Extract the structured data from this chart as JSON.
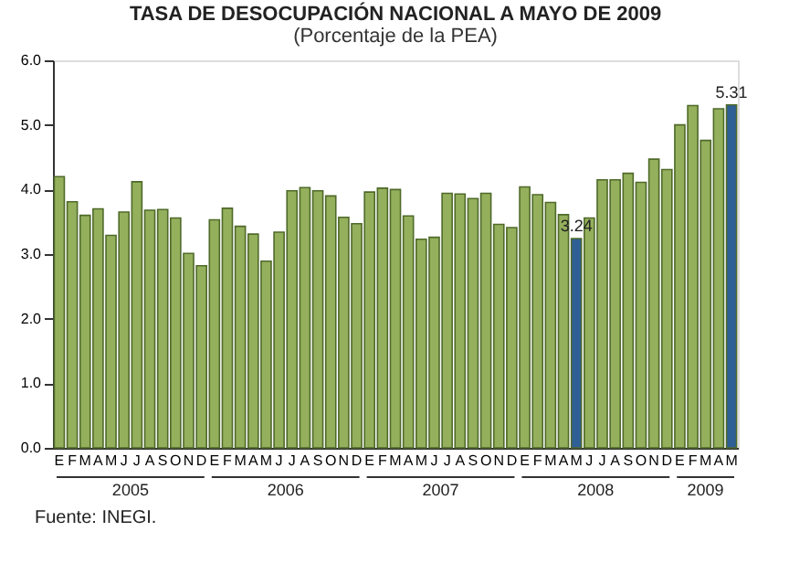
{
  "chart_data": {
    "type": "bar",
    "title": "TASA DE DESOCUPACIÓN NACIONAL A MAYO DE 2009",
    "subtitle": "(Porcentaje de la PEA)",
    "categories": [
      "E",
      "F",
      "M",
      "A",
      "M",
      "J",
      "J",
      "A",
      "S",
      "O",
      "N",
      "D",
      "E",
      "F",
      "M",
      "A",
      "M",
      "J",
      "J",
      "A",
      "S",
      "O",
      "N",
      "D",
      "E",
      "F",
      "M",
      "A",
      "M",
      "J",
      "J",
      "A",
      "S",
      "O",
      "N",
      "D",
      "E",
      "F",
      "M",
      "A",
      "M",
      "J",
      "J",
      "A",
      "S",
      "O",
      "N",
      "D",
      "E",
      "F",
      "M",
      "A",
      "M"
    ],
    "values": [
      4.2,
      3.81,
      3.6,
      3.7,
      3.29,
      3.65,
      4.12,
      3.68,
      3.69,
      3.56,
      3.01,
      2.82,
      3.53,
      3.71,
      3.43,
      3.31,
      2.89,
      3.34,
      3.98,
      4.03,
      3.98,
      3.9,
      3.57,
      3.47,
      3.96,
      4.02,
      4.0,
      3.59,
      3.23,
      3.26,
      3.94,
      3.93,
      3.86,
      3.94,
      3.46,
      3.41,
      4.04,
      3.92,
      3.8,
      3.61,
      3.24,
      3.56,
      4.15,
      4.15,
      4.25,
      4.11,
      4.47,
      4.31,
      5.0,
      5.3,
      4.76,
      5.25,
      5.31
    ],
    "colors": [
      "#94b05c",
      "#94b05c",
      "#94b05c",
      "#94b05c",
      "#94b05c",
      "#94b05c",
      "#94b05c",
      "#94b05c",
      "#94b05c",
      "#94b05c",
      "#94b05c",
      "#94b05c",
      "#94b05c",
      "#94b05c",
      "#94b05c",
      "#94b05c",
      "#94b05c",
      "#94b05c",
      "#94b05c",
      "#94b05c",
      "#94b05c",
      "#94b05c",
      "#94b05c",
      "#94b05c",
      "#94b05c",
      "#94b05c",
      "#94b05c",
      "#94b05c",
      "#94b05c",
      "#94b05c",
      "#94b05c",
      "#94b05c",
      "#94b05c",
      "#94b05c",
      "#94b05c",
      "#94b05c",
      "#94b05c",
      "#94b05c",
      "#94b05c",
      "#94b05c",
      "#2e5f95",
      "#94b05c",
      "#94b05c",
      "#94b05c",
      "#94b05c",
      "#94b05c",
      "#94b05c",
      "#94b05c",
      "#94b05c",
      "#94b05c",
      "#94b05c",
      "#94b05c",
      "#2e5f95"
    ],
    "value_labels": [
      null,
      null,
      null,
      null,
      null,
      null,
      null,
      null,
      null,
      null,
      null,
      null,
      null,
      null,
      null,
      null,
      null,
      null,
      null,
      null,
      null,
      null,
      null,
      null,
      null,
      null,
      null,
      null,
      null,
      null,
      null,
      null,
      null,
      null,
      null,
      null,
      null,
      null,
      null,
      null,
      "3.24",
      null,
      null,
      null,
      null,
      null,
      null,
      null,
      null,
      null,
      null,
      null,
      "5.31"
    ],
    "ylim": [
      0,
      6
    ],
    "yticks": [
      {
        "value": 0,
        "label": "0.0"
      },
      {
        "value": 1,
        "label": "1.0"
      },
      {
        "value": 2,
        "label": "2.0"
      },
      {
        "value": 3,
        "label": "3.0"
      },
      {
        "value": 4,
        "label": "4.0"
      },
      {
        "value": 5,
        "label": "5.0"
      },
      {
        "value": 6,
        "label": "6.0"
      }
    ],
    "grid": false,
    "annotations": [
      "2005",
      "2006",
      "2007",
      "2008",
      "2009",
      "Fuente: INEGI."
    ]
  }
}
